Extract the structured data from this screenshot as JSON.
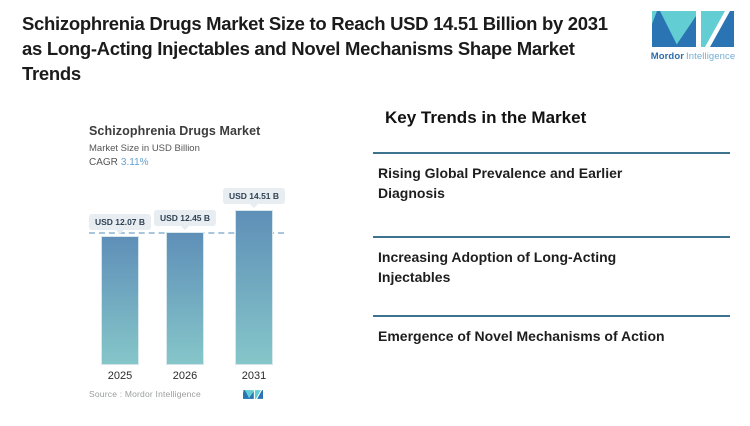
{
  "header": {
    "title_lines": [
      "Schizophrenia Drugs Market Size to Reach USD 14.51 Billion by 2031",
      "as Long-Acting Injectables and Novel Mechanisms Shape Market",
      "Trends"
    ],
    "logo": {
      "brand_bold": "Mordor",
      "brand_light": "Intelligence"
    }
  },
  "chart": {
    "title": "Schizophrenia Drugs Market",
    "subtitle": "Market Size in USD Billion",
    "cagr_label": "CAGR",
    "cagr_value": "3.11%",
    "source": "Source :  Mordor Intelligence"
  },
  "chart_data": {
    "type": "bar",
    "title": "Schizophrenia Drugs Market",
    "ylabel": "Market Size in USD Billion",
    "cagr": "3.11%",
    "categories": [
      "2025",
      "2026",
      "2031"
    ],
    "values": [
      12.07,
      12.45,
      14.51
    ],
    "bar_labels": [
      "USD 12.07 B",
      "USD 12.45 B",
      "USD 14.51 B"
    ],
    "ylim": [
      0,
      17.3
    ],
    "reference_line_value": 12.07,
    "grid": false,
    "legend": "none",
    "bar_gradient": [
      "#5f8fb8",
      "#85c6c9"
    ]
  },
  "trends": {
    "heading": "Key Trends in the Market",
    "items": [
      {
        "title": "Rising Global Prevalence and Earlier Diagnosis"
      },
      {
        "title": "Increasing Adoption of Long-Acting Injectables"
      },
      {
        "title": "Emergence of Novel Mechanisms of Action"
      }
    ]
  },
  "colors": {
    "divider": "#3e7390",
    "dashed_line": "#a9c6dc",
    "cagr_value": "#62a1d0",
    "bar_top": "#5f8fb8",
    "bar_bottom": "#85c6c9",
    "logo_blue": "#2a74b3",
    "logo_teal": "#62cdd2",
    "pill_bg": "#e8edf2"
  }
}
